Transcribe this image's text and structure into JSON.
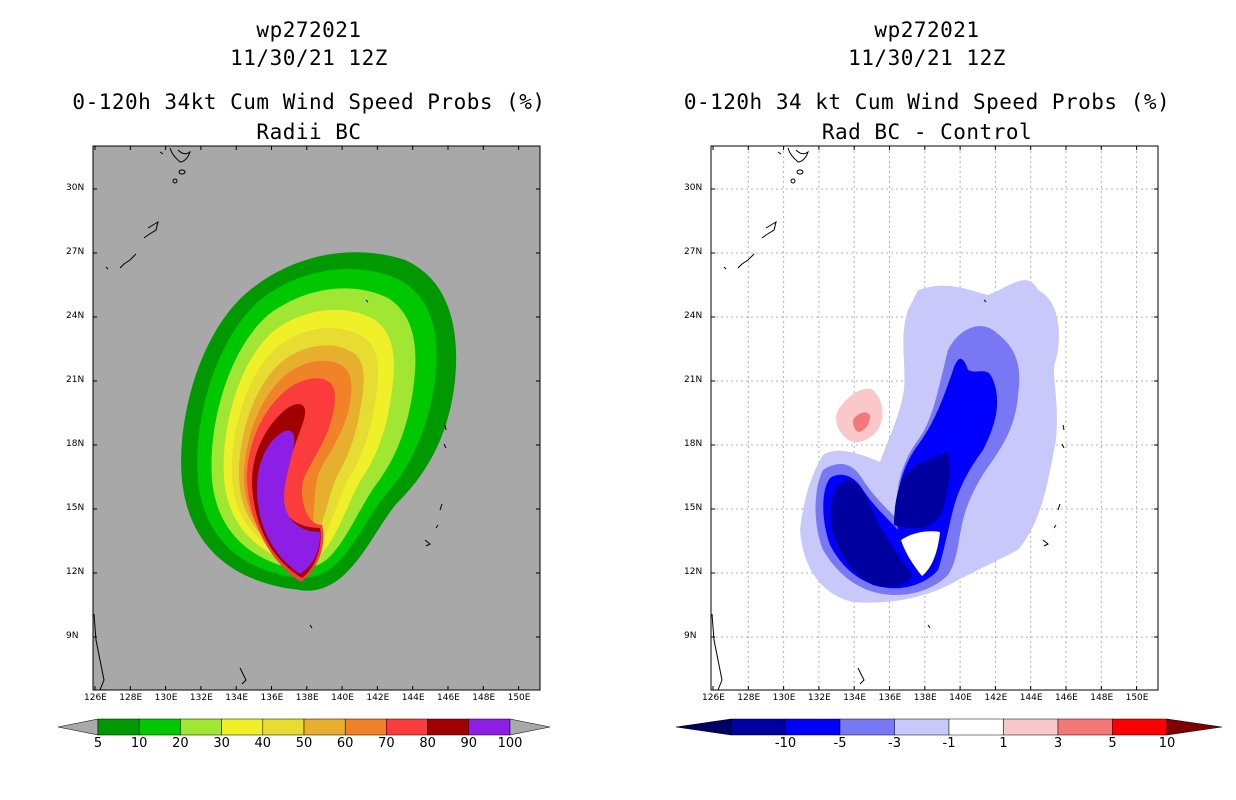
{
  "left": {
    "line1": "wp272021",
    "line2": "11/30/21 12Z",
    "line3": "0-120h 34kt Cum Wind Speed Probs (%)",
    "line4": "Radii BC",
    "background_color": "#a8a8a8",
    "colorbar": {
      "labels": [
        "5",
        "10",
        "20",
        "30",
        "40",
        "50",
        "60",
        "70",
        "80",
        "90",
        "100"
      ],
      "colors": [
        "#019901",
        "#00c800",
        "#a0e632",
        "#f0f028",
        "#e6dc32",
        "#e6af2d",
        "#f08228",
        "#fa3c3c",
        "#a00000",
        "#8c1ee6"
      ]
    }
  },
  "right": {
    "line1": "wp272021",
    "line2": "11/30/21 12Z",
    "line3": "0-120h 34 kt Cum Wind Speed Probs (%)",
    "line4": "Rad BC - Control",
    "colorbar": {
      "labels": [
        "-10",
        "-5",
        "-3",
        "-1",
        "1",
        "3",
        "5",
        "10"
      ],
      "colors": [
        "#0000a0",
        "#0000ff",
        "#7878f5",
        "#c8c8fa",
        "#ffffff",
        "#fac8c8",
        "#f57878",
        "#ff0000"
      ],
      "arrow_left": "#000060",
      "arrow_right": "#800000"
    }
  },
  "axes": {
    "lon_ticks": [
      "126E",
      "128E",
      "130E",
      "132E",
      "134E",
      "136E",
      "138E",
      "140E",
      "142E",
      "144E",
      "146E",
      "148E",
      "150E"
    ],
    "lat_ticks": [
      "30N",
      "27N",
      "24N",
      "21N",
      "18N",
      "15N",
      "12N",
      "9N"
    ]
  }
}
